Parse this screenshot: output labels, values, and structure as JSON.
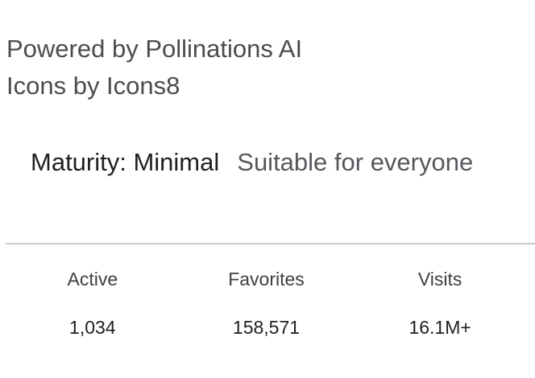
{
  "credits": {
    "powered_by": "Powered by Pollinations AI",
    "icons_by": "Icons by Icons8"
  },
  "maturity": {
    "label": "Maturity: Minimal",
    "description": "Suitable for everyone"
  },
  "stats": [
    {
      "label": "Active",
      "value": "1,034"
    },
    {
      "label": "Favorites",
      "value": "158,571"
    },
    {
      "label": "Visits",
      "value": "16.1M+"
    }
  ]
}
